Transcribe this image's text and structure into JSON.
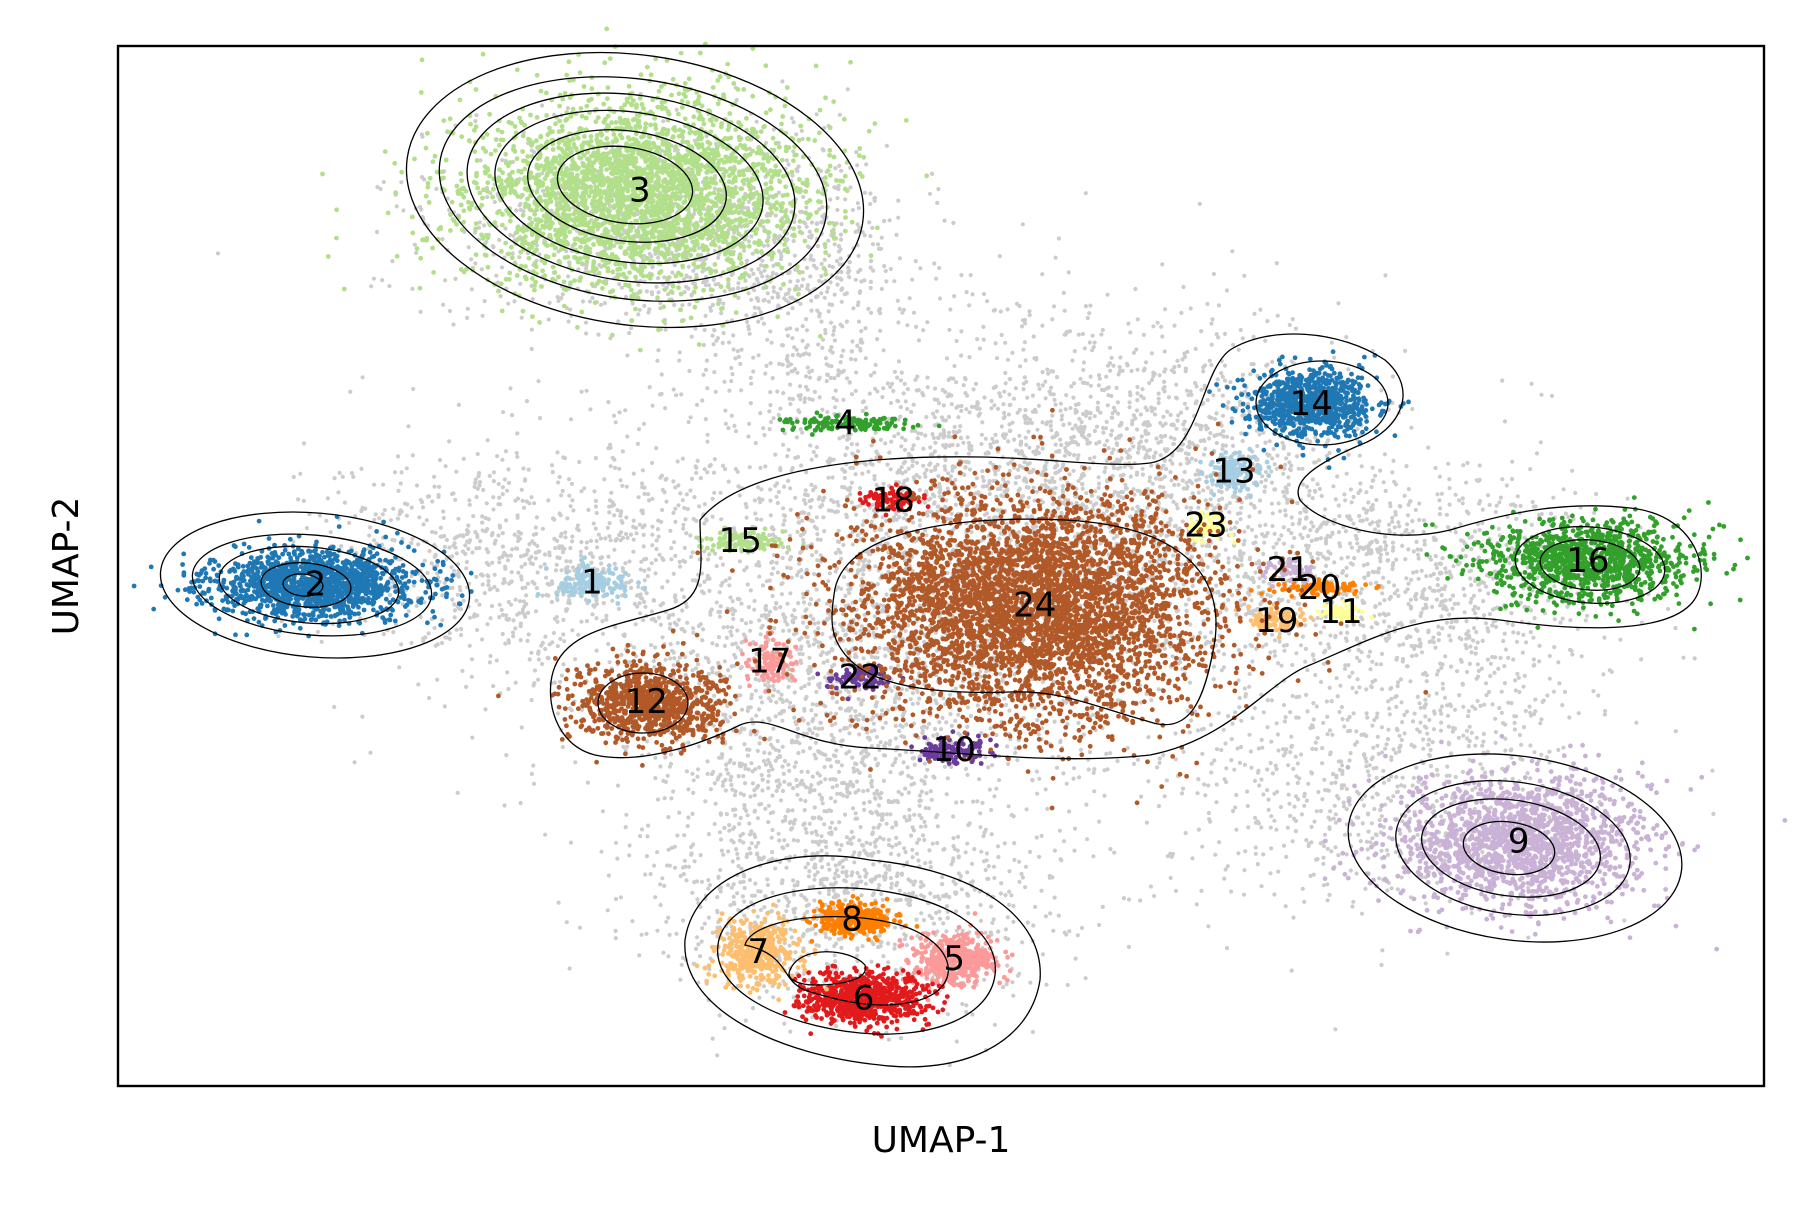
{
  "chart_data": {
    "type": "scatter",
    "title": "",
    "xlabel": "UMAP-1",
    "ylabel": "UMAP-2",
    "xticks": [],
    "yticks": [],
    "xlim": [
      0,
      100
    ],
    "ylim": [
      0,
      100
    ],
    "grid": false,
    "legend": "none",
    "background_point_color": "#cccccc",
    "contour_color": "#000000",
    "clusters": [
      {
        "label": "1",
        "color": "#a6cee3",
        "x": [
          28.8
        ],
        "y": [
          48.4
        ]
      },
      {
        "label": "2",
        "color": "#1f78b4",
        "x": [
          12.0
        ],
        "y": [
          48.2
        ]
      },
      {
        "label": "3",
        "color": "#b2df8a",
        "x": [
          31.7
        ],
        "y": [
          86.1
        ]
      },
      {
        "label": "4",
        "color": "#33a02c",
        "x": [
          44.2
        ],
        "y": [
          63.7
        ]
      },
      {
        "label": "5",
        "color": "#fb9a99",
        "x": [
          50.8
        ],
        "y": [
          12.2
        ]
      },
      {
        "label": "6",
        "color": "#e31a1c",
        "x": [
          45.3
        ],
        "y": [
          8.4
        ]
      },
      {
        "label": "7",
        "color": "#fdbf6f",
        "x": [
          38.9
        ],
        "y": [
          12.9
        ]
      },
      {
        "label": "8",
        "color": "#ff7f00",
        "x": [
          44.6
        ],
        "y": [
          16.0
        ]
      },
      {
        "label": "9",
        "color": "#cab2d6",
        "x": [
          85.1
        ],
        "y": [
          23.5
        ]
      },
      {
        "label": "10",
        "color": "#6a3d9a",
        "x": [
          50.8
        ],
        "y": [
          32.3
        ]
      },
      {
        "label": "11",
        "color": "#ffff99",
        "x": [
          74.3
        ],
        "y": [
          45.6
        ]
      },
      {
        "label": "12",
        "color": "#b15928",
        "x": [
          32.1
        ],
        "y": [
          36.9
        ]
      },
      {
        "label": "13",
        "color": "#a6cee3",
        "x": [
          67.8
        ],
        "y": [
          59.1
        ]
      },
      {
        "label": "14",
        "color": "#1f78b4",
        "x": [
          72.5
        ],
        "y": [
          65.6
        ]
      },
      {
        "label": "15",
        "color": "#b2df8a",
        "x": [
          37.8
        ],
        "y": [
          52.4
        ]
      },
      {
        "label": "16",
        "color": "#33a02c",
        "x": [
          89.3
        ],
        "y": [
          50.5
        ]
      },
      {
        "label": "17",
        "color": "#fb9a99",
        "x": [
          39.6
        ],
        "y": [
          40.8
        ]
      },
      {
        "label": "18",
        "color": "#e31a1c",
        "x": [
          47.1
        ],
        "y": [
          56.3
        ]
      },
      {
        "label": "19",
        "color": "#fdbf6f",
        "x": [
          70.4
        ],
        "y": [
          44.7
        ]
      },
      {
        "label": "20",
        "color": "#ff7f00",
        "x": [
          73.0
        ],
        "y": [
          47.9
        ]
      },
      {
        "label": "21",
        "color": "#cab2d6",
        "x": [
          71.1
        ],
        "y": [
          49.6
        ]
      },
      {
        "label": "22",
        "color": "#6a3d9a",
        "x": [
          45.1
        ],
        "y": [
          39.3
        ]
      },
      {
        "label": "23",
        "color": "#ffff99",
        "x": [
          66.1
        ],
        "y": [
          53.9
        ]
      },
      {
        "label": "24",
        "color": "#b15928",
        "x": [
          55.7
        ],
        "y": [
          46.2
        ]
      }
    ]
  }
}
